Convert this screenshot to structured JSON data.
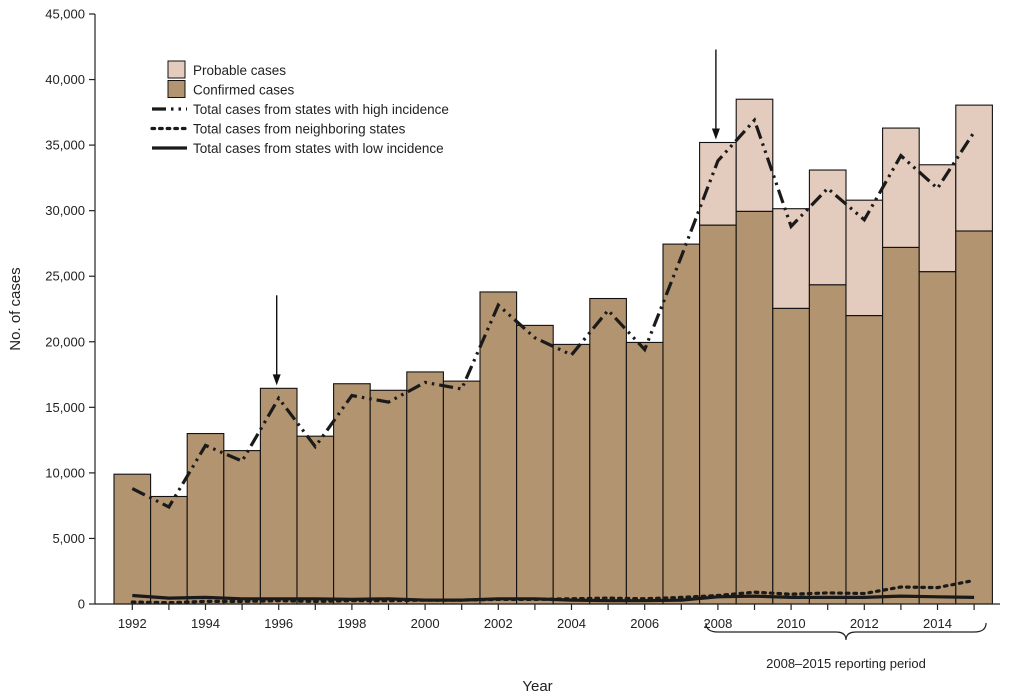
{
  "chart_data": {
    "type": "bar",
    "title": "",
    "xlabel": "Year",
    "ylabel": "No. of cases",
    "ylim": [
      0,
      45000
    ],
    "yticks": [
      0,
      5000,
      10000,
      15000,
      20000,
      25000,
      30000,
      35000,
      40000,
      45000
    ],
    "ytick_labels": [
      "0",
      "5,000",
      "10,000",
      "15,000",
      "20,000",
      "25,000",
      "30,000",
      "35,000",
      "40,000",
      "45,000"
    ],
    "x_tick_labels": [
      "1992",
      "1994",
      "1996",
      "1998",
      "2000",
      "2002",
      "2004",
      "2006",
      "2008",
      "2010",
      "2012",
      "2014"
    ],
    "categories": [
      1992,
      1993,
      1994,
      1995,
      1996,
      1997,
      1998,
      1999,
      2000,
      2001,
      2002,
      2003,
      2004,
      2005,
      2006,
      2007,
      2008,
      2009,
      2010,
      2011,
      2012,
      2013,
      2014,
      2015
    ],
    "stacked": true,
    "grid": false,
    "legend_position": "top-left",
    "series": [
      {
        "name": "Confirmed cases",
        "kind": "bar",
        "color": "#b39470",
        "values": [
          9900,
          8200,
          13000,
          11700,
          16450,
          12800,
          16800,
          16300,
          17700,
          17000,
          23800,
          21250,
          19800,
          23300,
          19950,
          27450,
          28900,
          29950,
          22550,
          24350,
          22000,
          27200,
          25350,
          28450
        ]
      },
      {
        "name": "Probable cases",
        "kind": "bar",
        "color": "#e3cbbd",
        "values": [
          0,
          0,
          0,
          0,
          0,
          0,
          0,
          0,
          0,
          0,
          0,
          0,
          0,
          0,
          0,
          0,
          6300,
          8550,
          7600,
          8750,
          8800,
          9100,
          8150,
          9600
        ]
      },
      {
        "name": "Total cases from states with high incidence",
        "kind": "line",
        "style": "dash-dot-dot",
        "values": [
          8800,
          7400,
          12100,
          10900,
          15700,
          12000,
          15900,
          15400,
          16900,
          16400,
          22800,
          20300,
          19000,
          22400,
          19400,
          26500,
          33800,
          36900,
          28800,
          31700,
          29300,
          34200,
          31700,
          36000
        ]
      },
      {
        "name": "Total cases from neighboring states",
        "kind": "line",
        "style": "dotted",
        "values": [
          150,
          100,
          200,
          200,
          250,
          200,
          250,
          250,
          300,
          300,
          350,
          350,
          400,
          450,
          400,
          500,
          650,
          900,
          750,
          850,
          800,
          1300,
          1250,
          1800
        ]
      },
      {
        "name": "Total cases from states with low incidence",
        "kind": "line",
        "style": "solid",
        "values": [
          650,
          450,
          500,
          400,
          400,
          400,
          350,
          400,
          300,
          300,
          400,
          400,
          300,
          250,
          250,
          300,
          550,
          600,
          500,
          500,
          500,
          600,
          550,
          500
        ]
      }
    ],
    "annotations": [
      {
        "type": "arrow",
        "x": 1996,
        "points_to": "top-of-bar"
      },
      {
        "type": "arrow",
        "x": 2008,
        "points_to": "top-of-bar"
      },
      {
        "type": "bracket",
        "from": 2008,
        "to": 2015,
        "label": "2008–2015 reporting period"
      }
    ]
  }
}
